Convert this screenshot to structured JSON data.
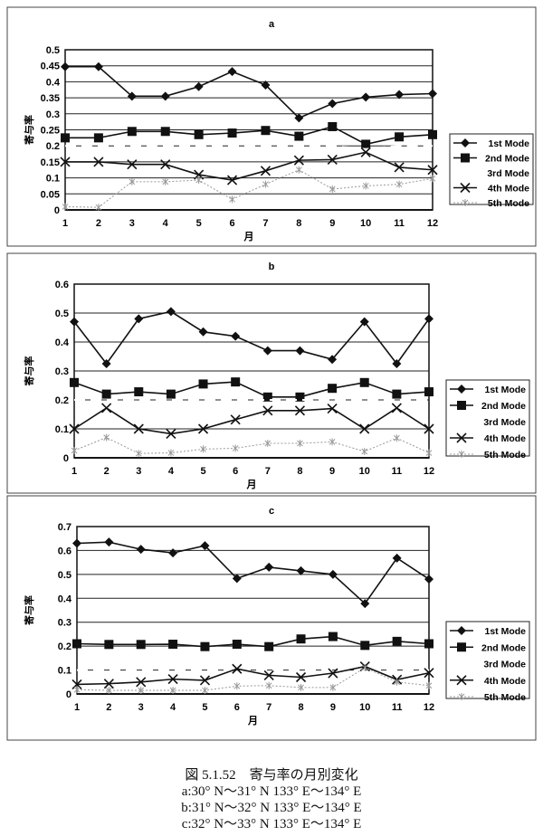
{
  "chart_data": [
    {
      "type": "line",
      "title": "a",
      "xlabel": "月",
      "ylabel": "寄与率",
      "ylim": [
        0,
        0.5
      ],
      "yticks": [
        0,
        0.05,
        0.1,
        0.15,
        0.2,
        0.25,
        0.3,
        0.35,
        0.4,
        0.45,
        0.5
      ],
      "ytick_labels": [
        "0",
        "0.05",
        "0.1",
        "0.15",
        "0.2",
        "0.25",
        "0.3",
        "0.35",
        "0.4",
        "0.45",
        "0.5"
      ],
      "grid": true,
      "legend": "right",
      "categories": [
        "1",
        "2",
        "3",
        "4",
        "5",
        "6",
        "7",
        "8",
        "9",
        "10",
        "11",
        "12"
      ],
      "series": [
        {
          "name": "1st Mode",
          "values": [
            0.447,
            0.447,
            0.355,
            0.355,
            0.385,
            0.432,
            0.39,
            0.287,
            0.332,
            0.352,
            0.36,
            0.363
          ]
        },
        {
          "name": "2nd Mode",
          "values": [
            0.225,
            0.225,
            0.245,
            0.245,
            0.235,
            0.24,
            0.248,
            0.23,
            0.26,
            0.205,
            0.228,
            0.235
          ]
        },
        {
          "name": "3rd Mode",
          "values": [
            0.2,
            0.2,
            0.2,
            0.2,
            0.2,
            0.2,
            0.2,
            0.2,
            0.2,
            0.19,
            0.2,
            0.2
          ]
        },
        {
          "name": "4th Mode",
          "values": [
            0.15,
            0.15,
            0.142,
            0.142,
            0.11,
            0.093,
            0.122,
            0.155,
            0.157,
            0.18,
            0.133,
            0.125
          ]
        },
        {
          "name": "5th Mode",
          "values": [
            0.01,
            0.008,
            0.088,
            0.088,
            0.093,
            0.033,
            0.08,
            0.125,
            0.065,
            0.075,
            0.08,
            0.098
          ]
        }
      ]
    },
    {
      "type": "line",
      "title": "b",
      "xlabel": "月",
      "ylabel": "寄与率",
      "ylim": [
        0,
        0.6
      ],
      "yticks": [
        0,
        0.1,
        0.2,
        0.3,
        0.4,
        0.5,
        0.6
      ],
      "ytick_labels": [
        "0",
        "0.1",
        "0.2",
        "0.3",
        "0.4",
        "0.5",
        "0.6"
      ],
      "grid": true,
      "legend": "right",
      "categories": [
        "1",
        "2",
        "3",
        "4",
        "5",
        "6",
        "7",
        "8",
        "9",
        "10",
        "11",
        "12"
      ],
      "series": [
        {
          "name": "1st Mode",
          "values": [
            0.47,
            0.325,
            0.48,
            0.505,
            0.435,
            0.42,
            0.37,
            0.37,
            0.34,
            0.47,
            0.325,
            0.48
          ]
        },
        {
          "name": "2nd Mode",
          "values": [
            0.26,
            0.22,
            0.228,
            0.22,
            0.255,
            0.262,
            0.21,
            0.21,
            0.24,
            0.26,
            0.22,
            0.228
          ]
        },
        {
          "name": "3rd Mode",
          "values": [
            0.2,
            0.2,
            0.2,
            0.2,
            0.2,
            0.2,
            0.2,
            0.2,
            0.2,
            0.2,
            0.2,
            0.2
          ]
        },
        {
          "name": "4th Mode",
          "values": [
            0.1,
            0.172,
            0.1,
            0.083,
            0.1,
            0.132,
            0.163,
            0.163,
            0.17,
            0.1,
            0.172,
            0.1
          ]
        },
        {
          "name": "5th Mode",
          "values": [
            0.025,
            0.07,
            0.015,
            0.017,
            0.03,
            0.033,
            0.05,
            0.05,
            0.055,
            0.022,
            0.068,
            0.017
          ]
        }
      ]
    },
    {
      "type": "line",
      "title": "c",
      "xlabel": "月",
      "ylabel": "寄与率",
      "ylim": [
        0,
        0.7
      ],
      "yticks": [
        0,
        0.1,
        0.2,
        0.3,
        0.4,
        0.5,
        0.6,
        0.7
      ],
      "ytick_labels": [
        "0",
        "0.1",
        "0.2",
        "0.3",
        "0.4",
        "0.5",
        "0.6",
        "0.7"
      ],
      "grid": true,
      "legend": "right",
      "categories": [
        "1",
        "2",
        "3",
        "4",
        "5",
        "6",
        "7",
        "8",
        "9",
        "10",
        "11",
        "12"
      ],
      "series": [
        {
          "name": "1st Mode",
          "values": [
            0.63,
            0.635,
            0.605,
            0.59,
            0.62,
            0.483,
            0.53,
            0.515,
            0.5,
            0.378,
            0.568,
            0.48
          ]
        },
        {
          "name": "2nd Mode",
          "values": [
            0.21,
            0.207,
            0.207,
            0.208,
            0.198,
            0.208,
            0.198,
            0.23,
            0.24,
            0.203,
            0.22,
            0.21
          ]
        },
        {
          "name": "3rd Mode",
          "values": [
            0.1,
            0.1,
            0.1,
            0.1,
            0.1,
            0.1,
            0.1,
            0.1,
            0.1,
            0.1,
            0.1,
            0.1
          ]
        },
        {
          "name": "4th Mode",
          "values": [
            0.04,
            0.043,
            0.05,
            0.062,
            0.057,
            0.105,
            0.078,
            0.07,
            0.087,
            0.115,
            0.06,
            0.088
          ]
        },
        {
          "name": "5th Mode",
          "values": [
            0.018,
            0.015,
            0.015,
            0.015,
            0.015,
            0.033,
            0.035,
            0.027,
            0.027,
            0.11,
            0.05,
            0.035
          ]
        }
      ]
    }
  ],
  "caption": {
    "title": "図 5.1.52　寄与率の月別変化",
    "lines": [
      "a:30° N～31° N 133° E～134° E",
      "b:31° N～32° N 133° E～134° E",
      "c:32° N～33° N 133° E～134° E"
    ]
  }
}
